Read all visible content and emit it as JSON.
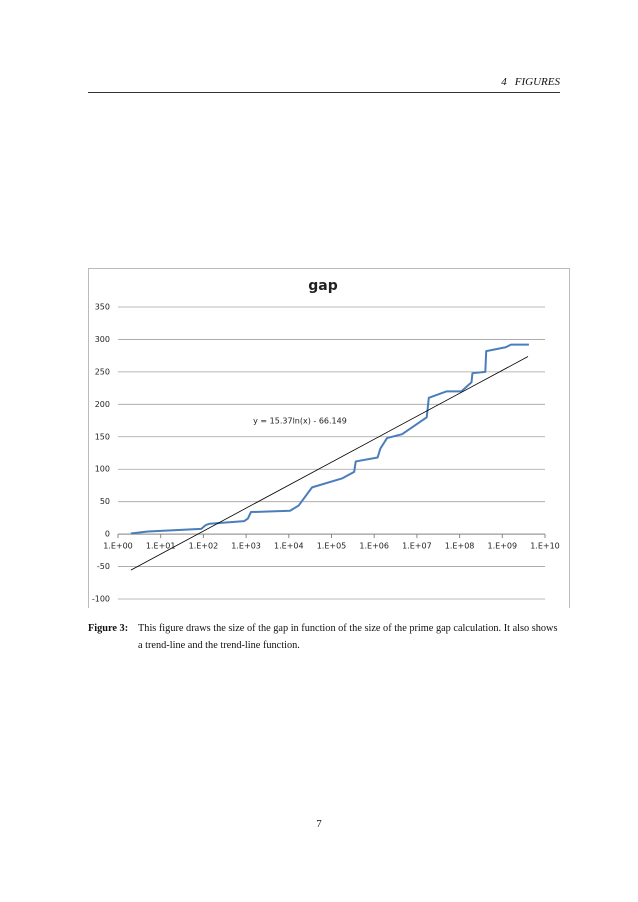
{
  "header": {
    "section": "4",
    "title": "FIGURES"
  },
  "chart_data": {
    "type": "line",
    "title": "gap",
    "xscale": "log",
    "grid": true,
    "xlim": [
      1,
      10000000000
    ],
    "xticks": [
      {
        "value": 1,
        "label": "1.E+00"
      },
      {
        "value": 10,
        "label": "1.E+01"
      },
      {
        "value": 100,
        "label": "1.E+02"
      },
      {
        "value": 1000,
        "label": "1.E+03"
      },
      {
        "value": 10000,
        "label": "1.E+04"
      },
      {
        "value": 100000,
        "label": "1.E+05"
      },
      {
        "value": 1000000,
        "label": "1.E+06"
      },
      {
        "value": 10000000,
        "label": "1.E+07"
      },
      {
        "value": 100000000,
        "label": "1.E+08"
      },
      {
        "value": 1000000000,
        "label": "1.E+09"
      },
      {
        "value": 10000000000,
        "label": "1.E+10"
      }
    ],
    "ylim": [
      -100,
      350
    ],
    "yticks": [
      -100,
      -50,
      0,
      50,
      100,
      150,
      200,
      250,
      300,
      350
    ],
    "series": [
      {
        "color": "#4a7ebb",
        "x": [
          2,
          5,
          20,
          89,
          114,
          140,
          900,
          1100,
          1300,
          10700,
          17000,
          35000,
          180000,
          340000,
          370000,
          1200000,
          1400000,
          2000000,
          4500000,
          17000000,
          19000000,
          50000000,
          110000000,
          190000000,
          200000000,
          400000000,
          420000000,
          1200000000,
          1600000000,
          4200000000
        ],
        "values": [
          1,
          4,
          6,
          8,
          14,
          16,
          20,
          24,
          34,
          36,
          44,
          72,
          86,
          96,
          112,
          118,
          132,
          148,
          154,
          180,
          210,
          220,
          220,
          234,
          248,
          250,
          282,
          288,
          292,
          292
        ]
      }
    ],
    "trendline": {
      "color": "#000000",
      "x": [
        2,
        4000000000
      ],
      "values": [
        -55.5,
        273.7
      ],
      "label": "y = 15.37ln(x) - 66.149"
    }
  },
  "caption": {
    "label": "Figure 3:",
    "text": "This figure draws the size of the gap in function of the size of the prime gap calculation. It also shows a trend-line and the trend-line function."
  },
  "page_number": "7"
}
